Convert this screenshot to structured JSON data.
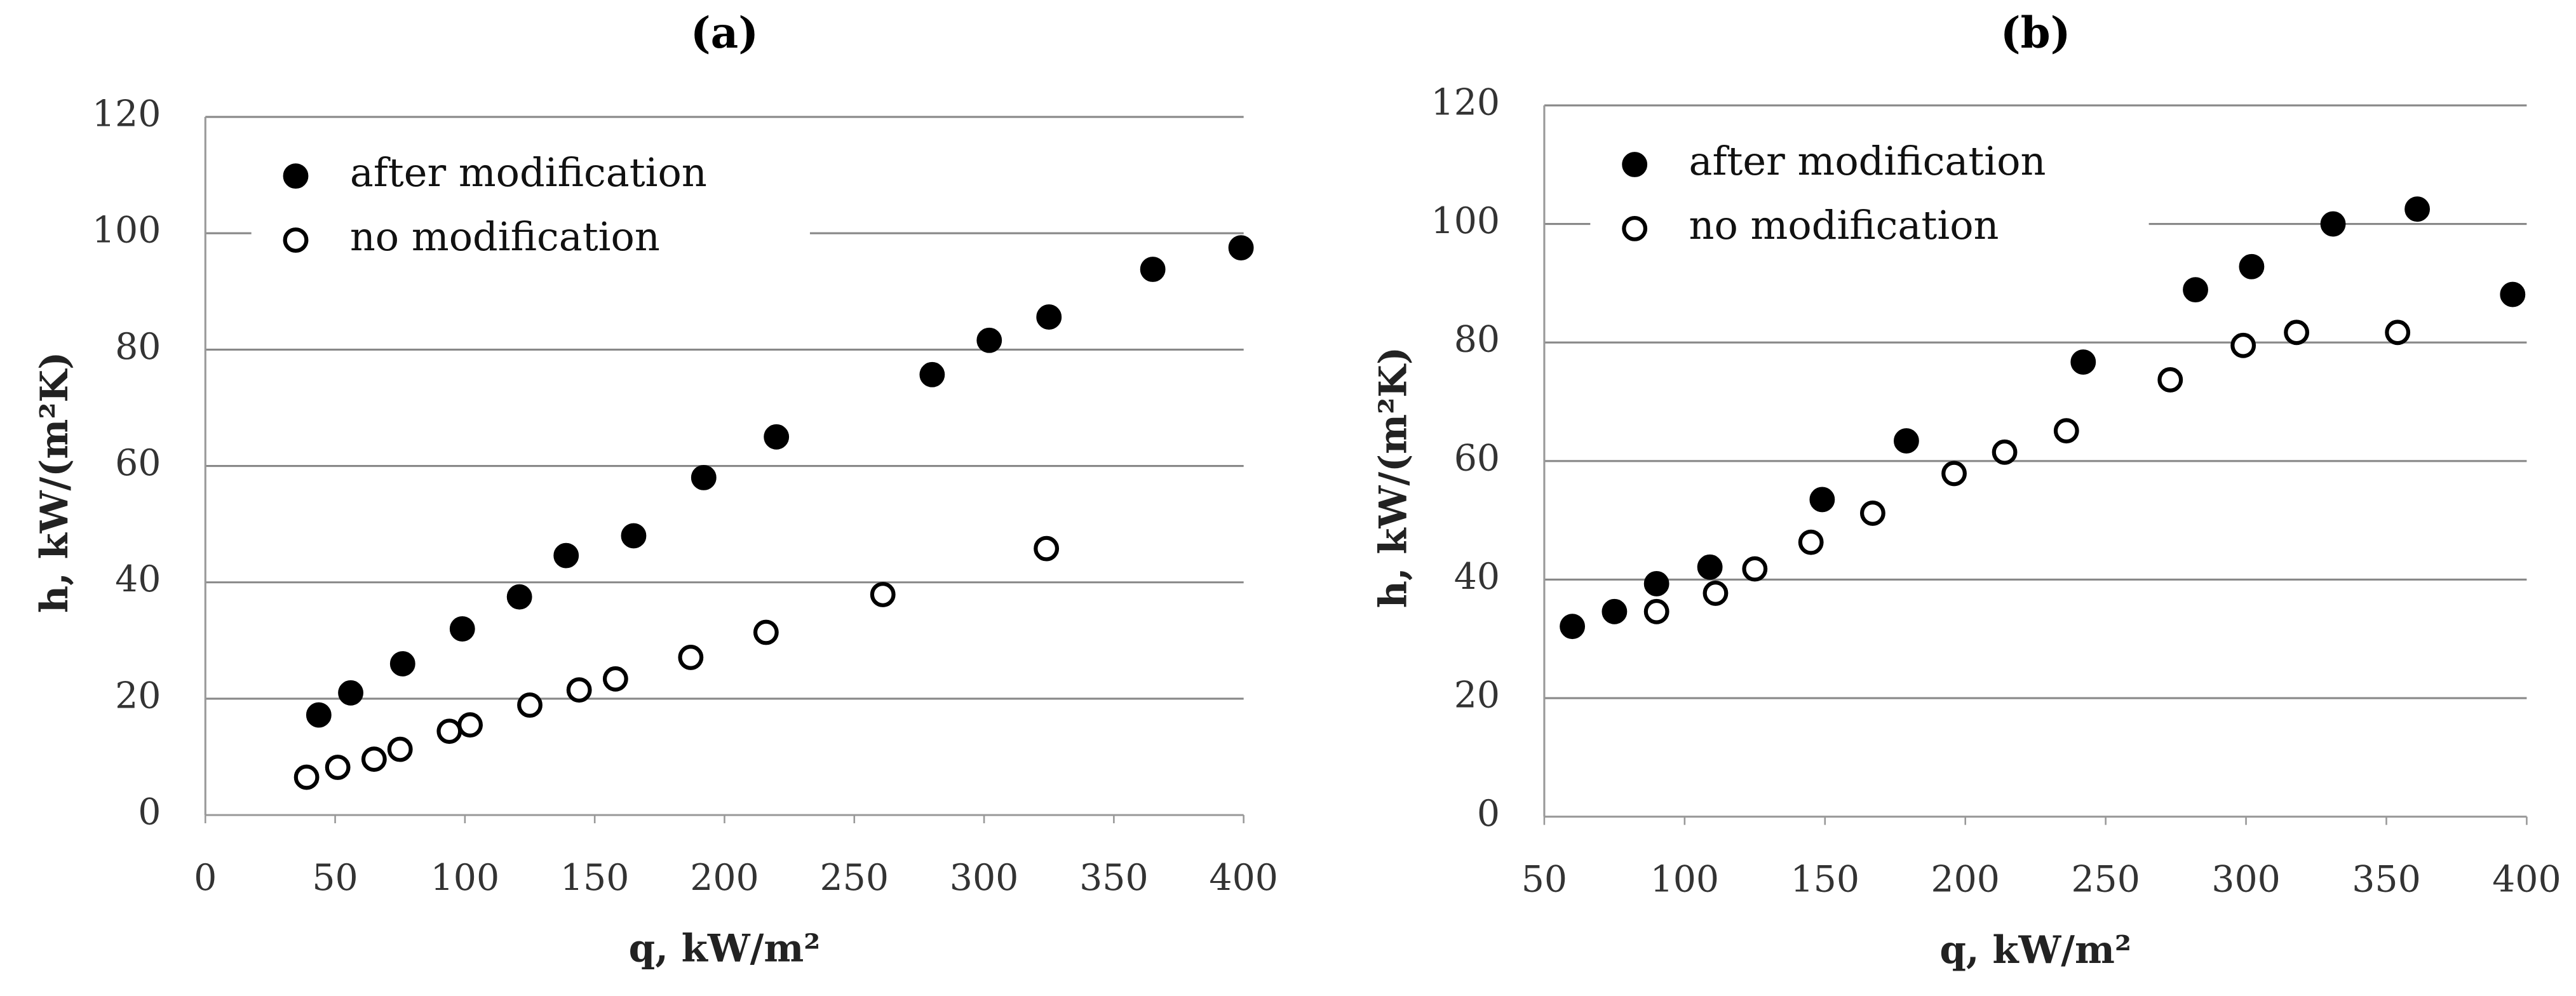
{
  "chart_data": [
    {
      "type": "scatter",
      "title": "(a)",
      "x_label": "q, kW/m²",
      "y_label": "h, kW/(m²K)",
      "xlim": [
        0,
        400
      ],
      "xticks": [
        0,
        50,
        100,
        150,
        200,
        250,
        300,
        350,
        400
      ],
      "ylim": [
        0,
        120
      ],
      "yticks": [
        0,
        20,
        40,
        60,
        80,
        100,
        120
      ],
      "grid": true,
      "legend": "top-left",
      "series": [
        {
          "name": "after modification",
          "color": "#000000",
          "marker": "filled",
          "x": [
            43.7,
            56,
            76,
            99,
            121,
            139,
            165,
            192,
            220,
            280,
            302,
            325,
            365,
            399
          ],
          "values": [
            17.2,
            21,
            26,
            32,
            37.5,
            44.6,
            48,
            58,
            65,
            75.7,
            81.6,
            85.6,
            93.8,
            97.5
          ]
        },
        {
          "name": "no modification",
          "color": "#000000",
          "marker": "open",
          "x": [
            39,
            51,
            65,
            75,
            94,
            102,
            125,
            144,
            158,
            187,
            216,
            261,
            324
          ],
          "values": [
            6.5,
            8.2,
            9.6,
            11.3,
            14.4,
            15.5,
            18.9,
            21.5,
            23.4,
            27.1,
            31.4,
            37.9,
            45.8
          ]
        }
      ]
    },
    {
      "type": "scatter",
      "title": "(b)",
      "x_label": "q, kW/m²",
      "y_label": "h, kW/(m²K)",
      "xlim": [
        50,
        400
      ],
      "xticks": [
        50,
        100,
        150,
        200,
        250,
        300,
        350,
        400
      ],
      "ylim": [
        0,
        120
      ],
      "yticks": [
        0,
        20,
        40,
        60,
        80,
        100,
        120
      ],
      "grid": true,
      "legend": "top-left",
      "series": [
        {
          "name": "after modification",
          "color": "#000000",
          "marker": "filled",
          "x": [
            60,
            75,
            90,
            109,
            149,
            179,
            242,
            282,
            302,
            331,
            361,
            395
          ],
          "values": [
            32.1,
            34.6,
            39.3,
            42.1,
            53.5,
            63.4,
            76.7,
            88.9,
            92.8,
            100,
            102.5,
            88.1
          ]
        },
        {
          "name": "no modification",
          "color": "#000000",
          "marker": "open",
          "x": [
            90,
            111,
            125,
            145,
            167,
            196,
            214,
            236,
            273,
            299,
            318,
            354
          ],
          "values": [
            34.6,
            37.7,
            41.8,
            46.3,
            51.2,
            57.9,
            61.5,
            65.1,
            73.7,
            79.5,
            81.7,
            81.7
          ]
        }
      ]
    }
  ]
}
